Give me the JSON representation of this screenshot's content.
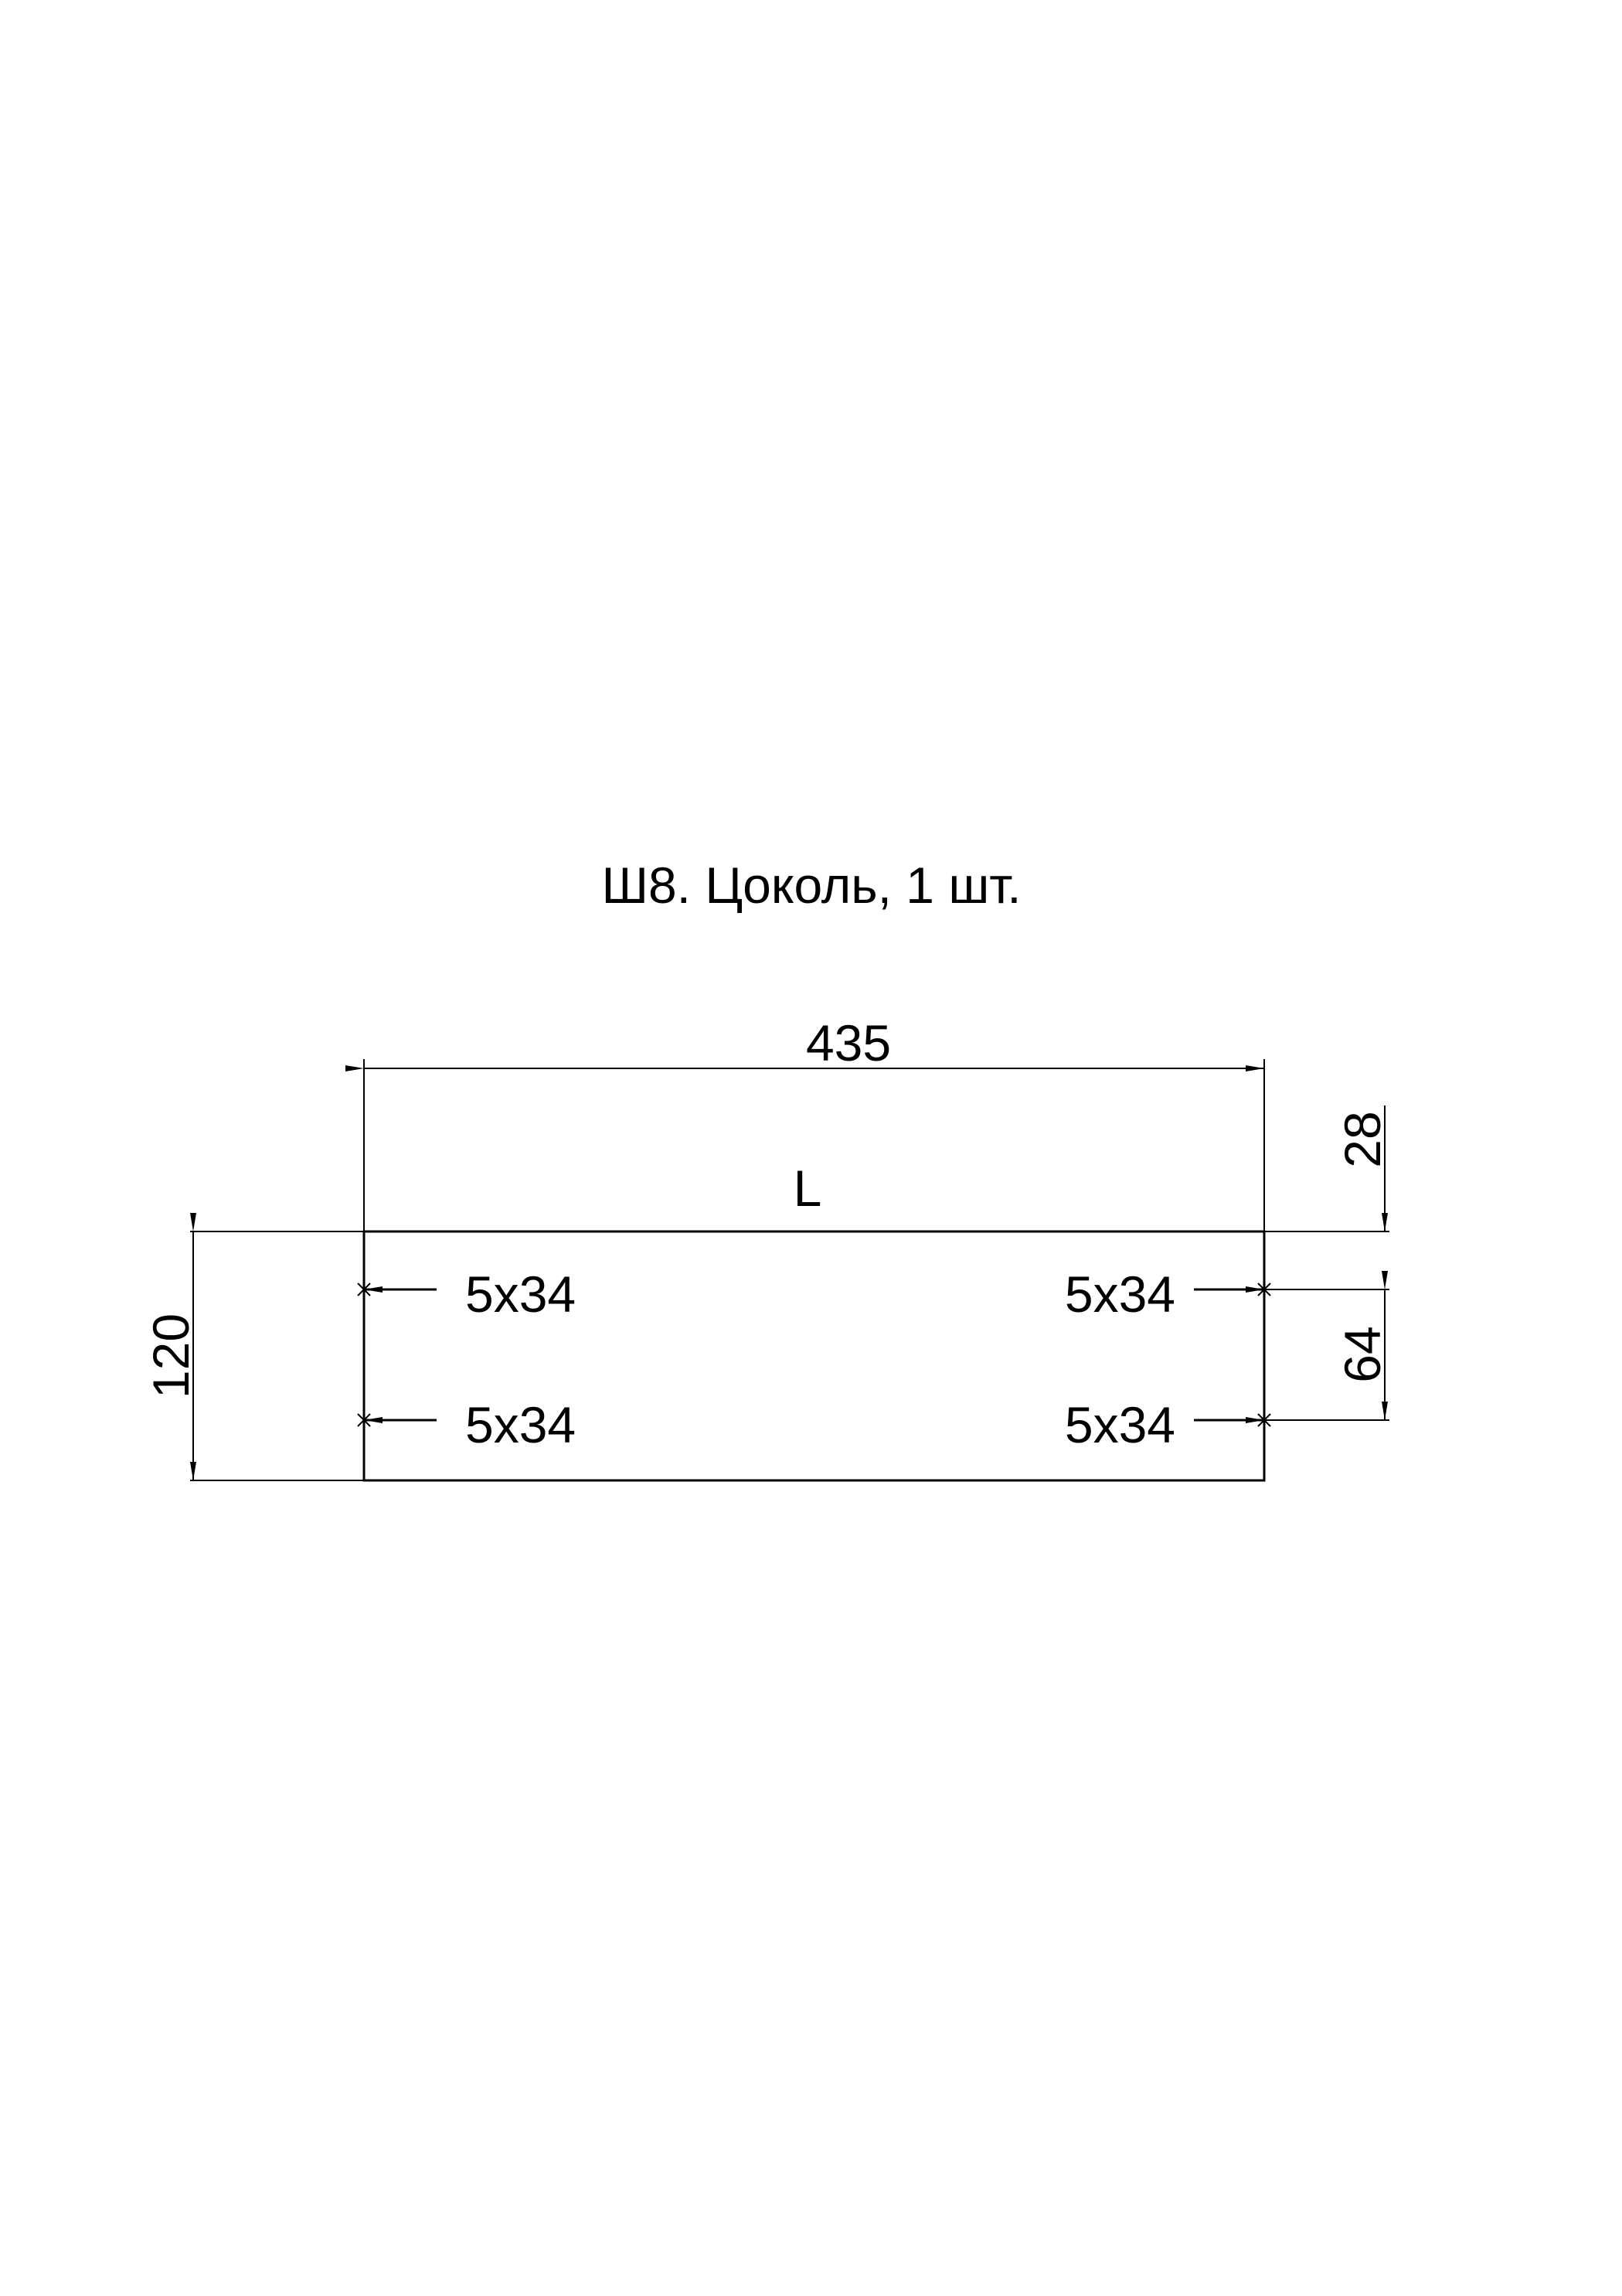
{
  "title": "Ш8. Цоколь, 1 шт.",
  "part": {
    "edge_label": "L"
  },
  "dimensions": {
    "width": "435",
    "height": "120",
    "top_offset": "28",
    "hole_spacing": "64"
  },
  "holes": [
    {
      "label": "5x34"
    },
    {
      "label": "5x34"
    },
    {
      "label": "5x34"
    },
    {
      "label": "5x34"
    }
  ],
  "colors": {
    "line": "#000000",
    "background": "#ffffff"
  }
}
